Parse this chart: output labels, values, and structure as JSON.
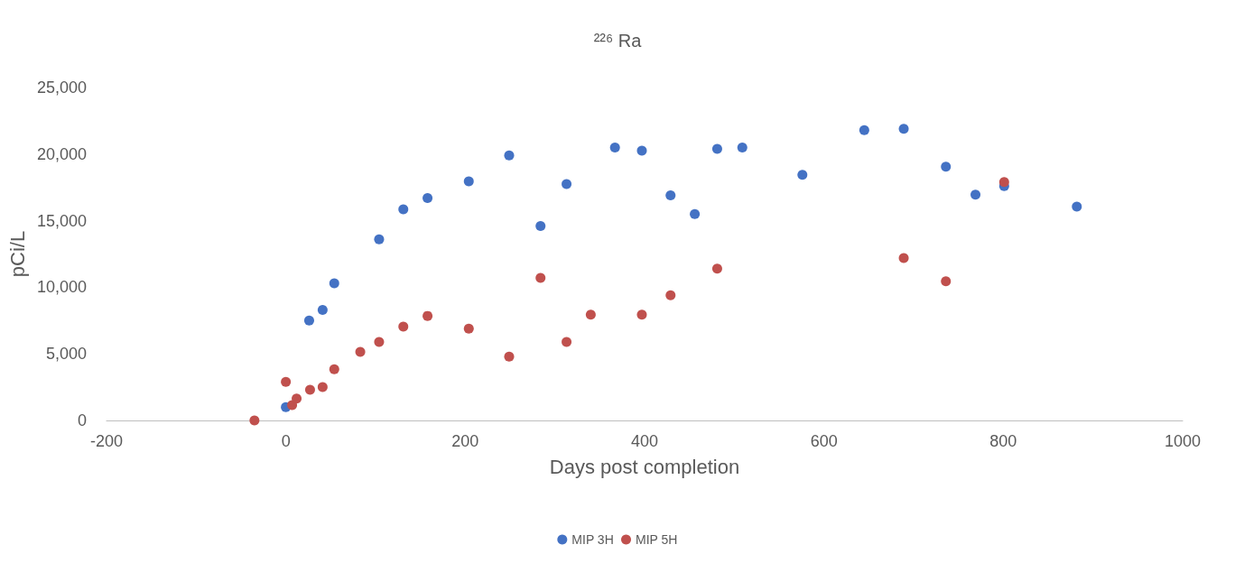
{
  "chart_data": {
    "type": "scatter",
    "title": "²²⁶ Ra",
    "xlabel": "Days post completion",
    "ylabel": "pCi/L",
    "series": [
      {
        "name": "MIP 3H",
        "color": "#4472c4",
        "x": [
          0,
          26,
          41,
          54,
          104,
          131,
          158,
          204,
          249,
          284,
          313,
          367,
          397,
          429,
          456,
          481,
          509,
          576,
          645,
          689,
          736,
          769,
          801,
          882
        ],
        "values": [
          1000,
          7500,
          8300,
          10300,
          13600,
          15850,
          16700,
          17950,
          19900,
          14600,
          17750,
          20500,
          20250,
          16900,
          15500,
          20400,
          20500,
          18450,
          21800,
          21900,
          19050,
          16950,
          17600,
          16050
        ]
      },
      {
        "name": "MIP 5H",
        "color": "#c0504d",
        "x": [
          -35,
          0,
          7,
          12,
          27,
          41,
          54,
          83,
          104,
          131,
          158,
          204,
          249,
          284,
          313,
          340,
          397,
          429,
          481,
          689,
          736,
          801
        ],
        "values": [
          0,
          2900,
          1150,
          1650,
          2300,
          2500,
          3850,
          5150,
          5900,
          7050,
          7850,
          6900,
          4800,
          10700,
          5900,
          7950,
          7950,
          9400,
          11400,
          12200,
          10450,
          17900
        ]
      }
    ],
    "xlim": [
      -200,
      1000
    ],
    "xticks": [
      -200,
      0,
      200,
      400,
      600,
      800,
      1000
    ],
    "ylim": [
      0,
      25000
    ],
    "yticks": [
      {
        "value": 0,
        "label": "0"
      },
      {
        "value": 5000,
        "label": "5,000"
      },
      {
        "value": 10000,
        "label": "10,000"
      },
      {
        "value": 15000,
        "label": "15,000"
      },
      {
        "value": 20000,
        "label": "20,000"
      },
      {
        "value": 25000,
        "label": "25,000"
      }
    ],
    "grid": false,
    "legend": "bottom",
    "marker": "circle"
  }
}
